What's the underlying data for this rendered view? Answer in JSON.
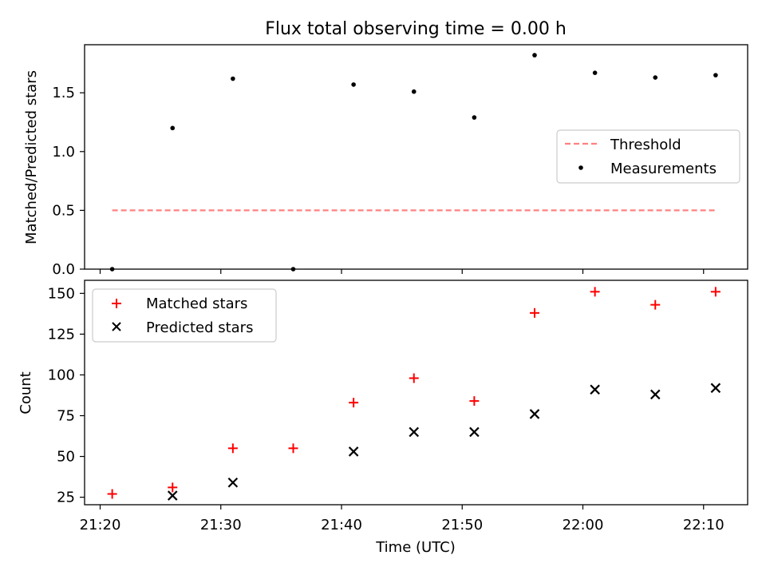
{
  "chart_data": [
    {
      "type": "scatter",
      "title": "Flux total observing time = 0.00 h",
      "xlabel": "",
      "ylabel": "Matched/Predicted stars",
      "ylim": [
        0,
        1.9
      ],
      "yticks": [
        "0.0",
        "0.5",
        "1.0",
        "1.5"
      ],
      "legend_position": "center-right",
      "threshold": {
        "name": "Threshold",
        "value": 0.5,
        "color": "#ff8080",
        "style": "dashed"
      },
      "series": [
        {
          "name": "Measurements",
          "color": "#000000",
          "marker": "dot",
          "x": [
            "21:21",
            "21:26",
            "21:31",
            "21:36",
            "21:41",
            "21:46",
            "21:51",
            "21:56",
            "22:01",
            "22:06",
            "22:11"
          ],
          "values": [
            0.0,
            1.2,
            1.62,
            0.0,
            1.57,
            1.51,
            1.29,
            1.82,
            1.67,
            1.63,
            1.65
          ]
        }
      ]
    },
    {
      "type": "scatter",
      "title": "",
      "xlabel": "Time (UTC)",
      "ylabel": "Count",
      "ylim": [
        20,
        158
      ],
      "yticks": [
        "25",
        "50",
        "75",
        "100",
        "125",
        "150"
      ],
      "xticks": [
        "21:20",
        "21:30",
        "21:40",
        "21:50",
        "22:00",
        "22:10"
      ],
      "legend_position": "upper-left",
      "series": [
        {
          "name": "Matched stars",
          "color": "#ff0000",
          "marker": "plus",
          "x": [
            "21:21",
            "21:26",
            "21:31",
            "21:36",
            "21:41",
            "21:46",
            "21:51",
            "21:56",
            "22:01",
            "22:06",
            "22:11"
          ],
          "values": [
            27,
            31,
            55,
            55,
            83,
            98,
            84,
            138,
            151,
            143,
            151
          ]
        },
        {
          "name": "Predicted stars",
          "color": "#000000",
          "marker": "x",
          "x": [
            "21:26",
            "21:31",
            "21:41",
            "21:46",
            "21:51",
            "21:56",
            "22:01",
            "22:06",
            "22:11"
          ],
          "values": [
            26,
            34,
            53,
            65,
            65,
            76,
            91,
            88,
            92
          ]
        }
      ]
    }
  ]
}
